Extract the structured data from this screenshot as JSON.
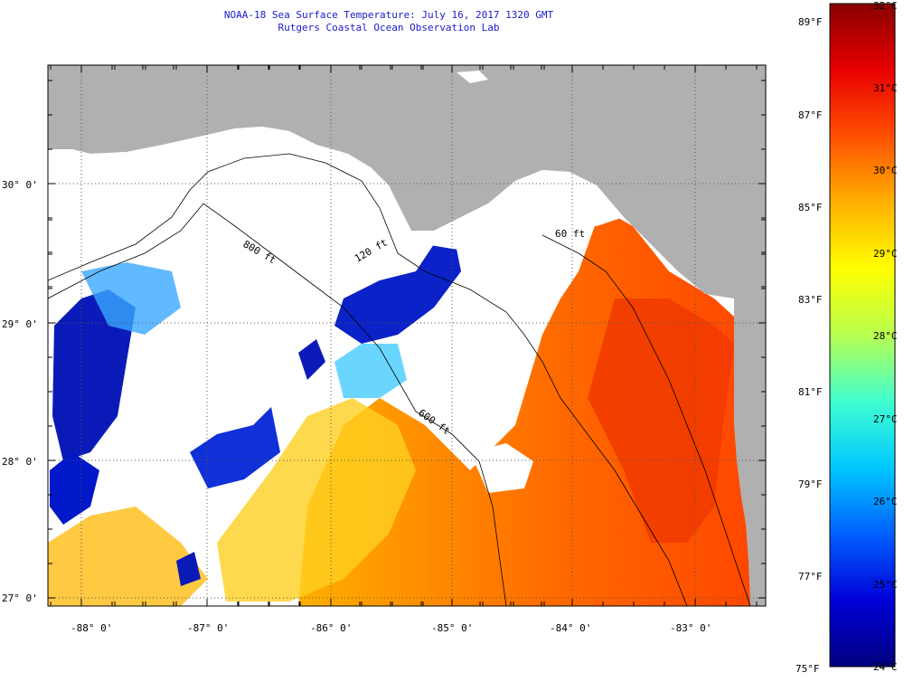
{
  "header": {
    "title": "NOAA-18 Sea Surface Temperature:  July 16, 2017 1320 GMT",
    "subtitle": "Rutgers Coastal Ocean Observation Lab"
  },
  "map": {
    "lon_labels": [
      "-88° 0'",
      "-87° 0'",
      "-86° 0'",
      "-85° 0'",
      "-84° 0'",
      "-83° 0'"
    ],
    "lat_labels": [
      "30° 0'",
      "29° 0'",
      "28° 0'",
      "27° 0'"
    ],
    "contour_labels": [
      "800 ft",
      "120 ft",
      "600 ft",
      "60 ft"
    ],
    "colors": {
      "land": "#b0b0b0",
      "clouds": "#ffffff"
    }
  },
  "colorbar": {
    "fahrenheit_labels": [
      "89°F",
      "87°F",
      "85°F",
      "83°F",
      "81°F",
      "79°F",
      "77°F",
      "75°F"
    ],
    "celsius_labels": [
      "32°C",
      "31°C",
      "30°C",
      "29°C",
      "28°C",
      "27°C",
      "26°C",
      "25°C",
      "24°C"
    ],
    "range_c": [
      24,
      32
    ],
    "stops": [
      "#00007f",
      "#0000d8",
      "#0060ff",
      "#00c8ff",
      "#40ffd0",
      "#b8ff50",
      "#ffff00",
      "#ffb000",
      "#ff5000",
      "#e80000",
      "#8a0000"
    ]
  }
}
